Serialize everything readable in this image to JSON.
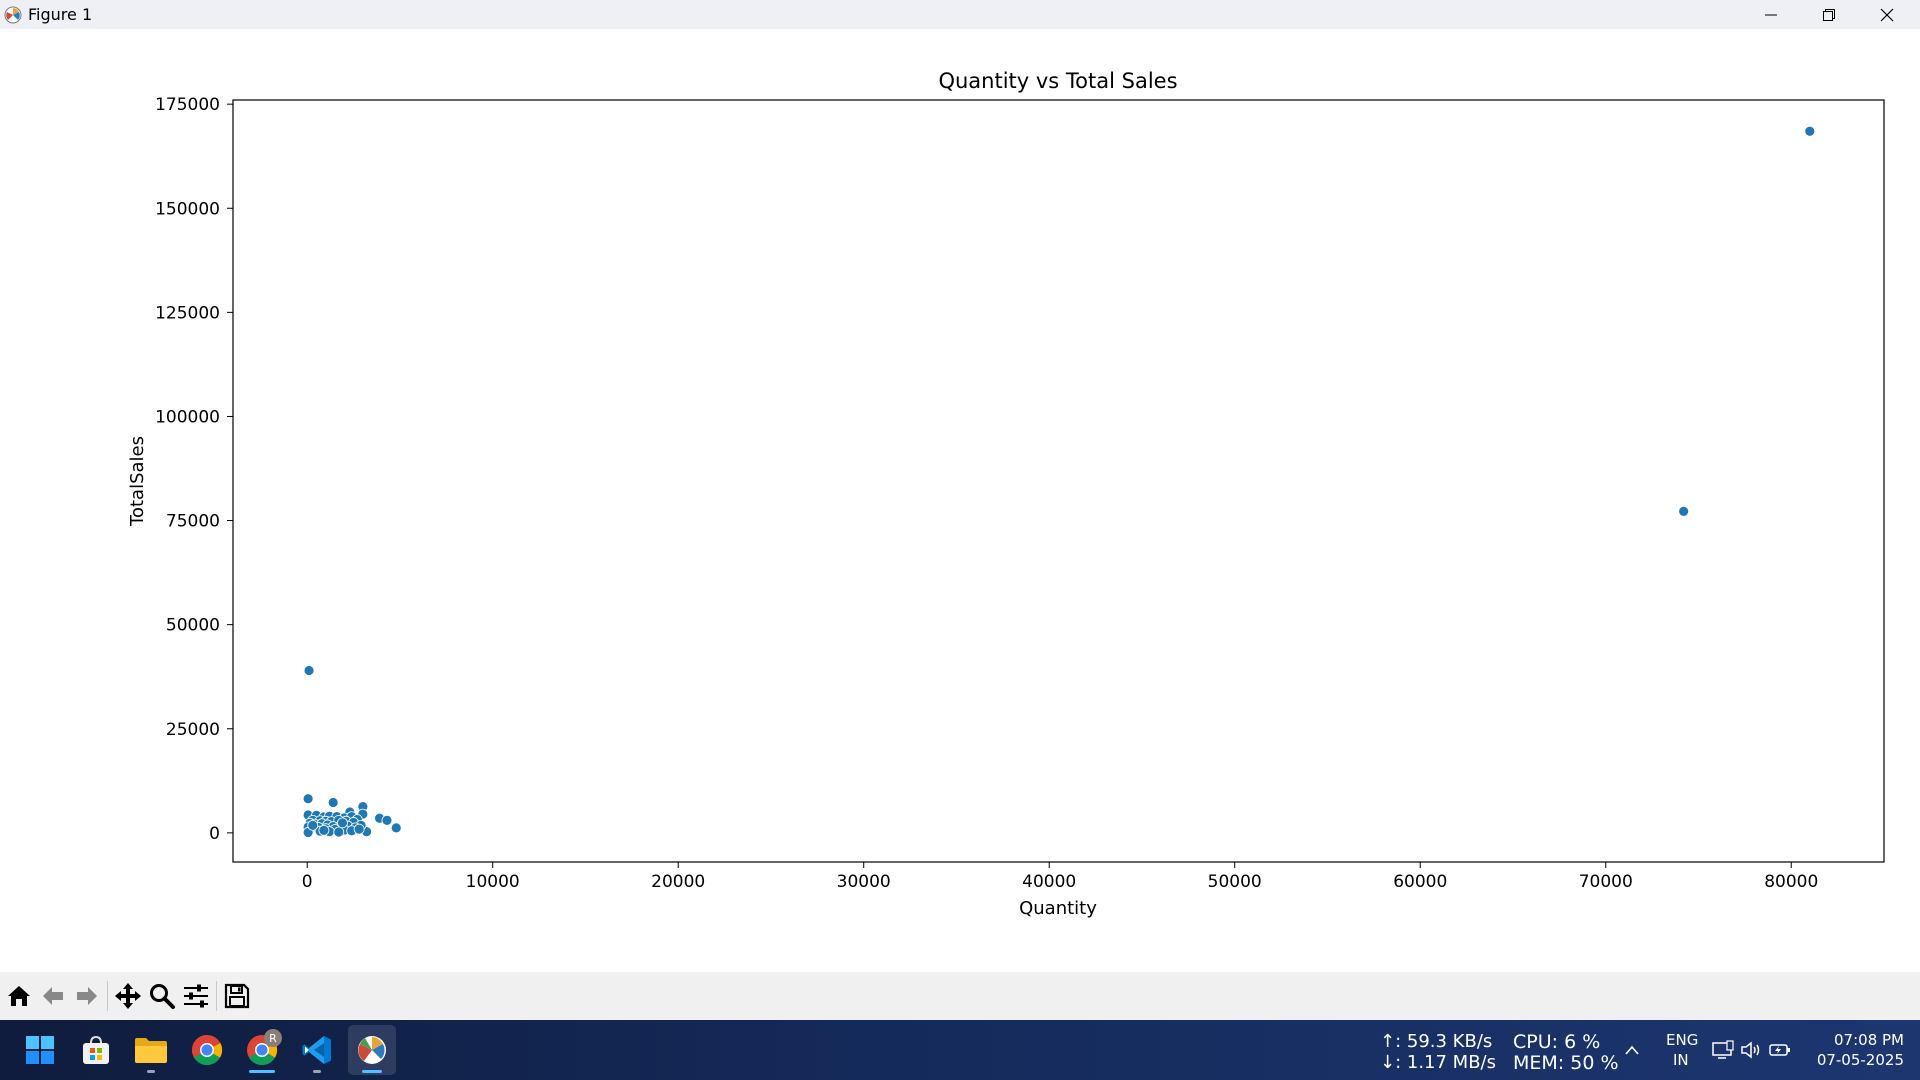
{
  "window": {
    "title": "Figure 1"
  },
  "chart_data": {
    "type": "scatter",
    "title": "Quantity vs Total Sales",
    "xlabel": "Quantity",
    "ylabel": "TotalSales",
    "xlim": [
      -4000,
      85000
    ],
    "ylim": [
      -7000,
      176000
    ],
    "xticks": [
      0,
      10000,
      20000,
      30000,
      40000,
      50000,
      60000,
      70000,
      80000
    ],
    "yticks": [
      0,
      25000,
      50000,
      75000,
      100000,
      125000,
      150000,
      175000
    ],
    "grid": false,
    "color": "#1f77b4",
    "points": [
      [
        81000,
        168500
      ],
      [
        74200,
        77200
      ],
      [
        100,
        39000
      ],
      [
        50,
        8200
      ],
      [
        1400,
        7300
      ],
      [
        3000,
        6300
      ],
      [
        2300,
        5000
      ],
      [
        3000,
        4500
      ],
      [
        3900,
        3500
      ],
      [
        4300,
        3000
      ],
      [
        4800,
        1200
      ],
      [
        3200,
        300
      ],
      [
        50,
        4300
      ],
      [
        500,
        4200
      ],
      [
        900,
        3800
      ],
      [
        1200,
        4000
      ],
      [
        1600,
        3900
      ],
      [
        2000,
        3600
      ],
      [
        2400,
        3900
      ],
      [
        2700,
        3200
      ],
      [
        300,
        3000
      ],
      [
        700,
        2900
      ],
      [
        1000,
        2800
      ],
      [
        1300,
        2700
      ],
      [
        1700,
        3000
      ],
      [
        2100,
        2800
      ],
      [
        2500,
        2500
      ],
      [
        2900,
        1800
      ],
      [
        150,
        2300
      ],
      [
        400,
        2100
      ],
      [
        800,
        2200
      ],
      [
        1100,
        1900
      ],
      [
        1400,
        1500
      ],
      [
        1800,
        1700
      ],
      [
        2200,
        1600
      ],
      [
        2600,
        1200
      ],
      [
        50,
        1400
      ],
      [
        600,
        1300
      ],
      [
        1000,
        1000
      ],
      [
        1500,
        800
      ],
      [
        2000,
        700
      ],
      [
        2400,
        500
      ],
      [
        50,
        100
      ],
      [
        700,
        400
      ],
      [
        1200,
        300
      ],
      [
        1700,
        200
      ],
      [
        2800,
        900
      ],
      [
        300,
        1800
      ],
      [
        1900,
        2400
      ],
      [
        900,
        600
      ]
    ]
  },
  "toolbar": {
    "buttons": [
      "home",
      "back",
      "forward",
      "pan",
      "zoom",
      "configure-subplots",
      "save"
    ]
  },
  "taskbar": {
    "apps": [
      "start",
      "microsoft-store",
      "file-explorer",
      "chrome",
      "chrome-profile",
      "vscode",
      "matplotlib-figure"
    ],
    "chrome_profile_badge": "R",
    "net_up": "↑: 59.3 KB/s",
    "net_down": "↓: 1.17 MB/s",
    "cpu": "CPU: 6 %",
    "mem": "MEM: 50 %",
    "lang_top": "ENG",
    "lang_bottom": "IN",
    "time": "07:08 PM",
    "date": "07-05-2025"
  }
}
